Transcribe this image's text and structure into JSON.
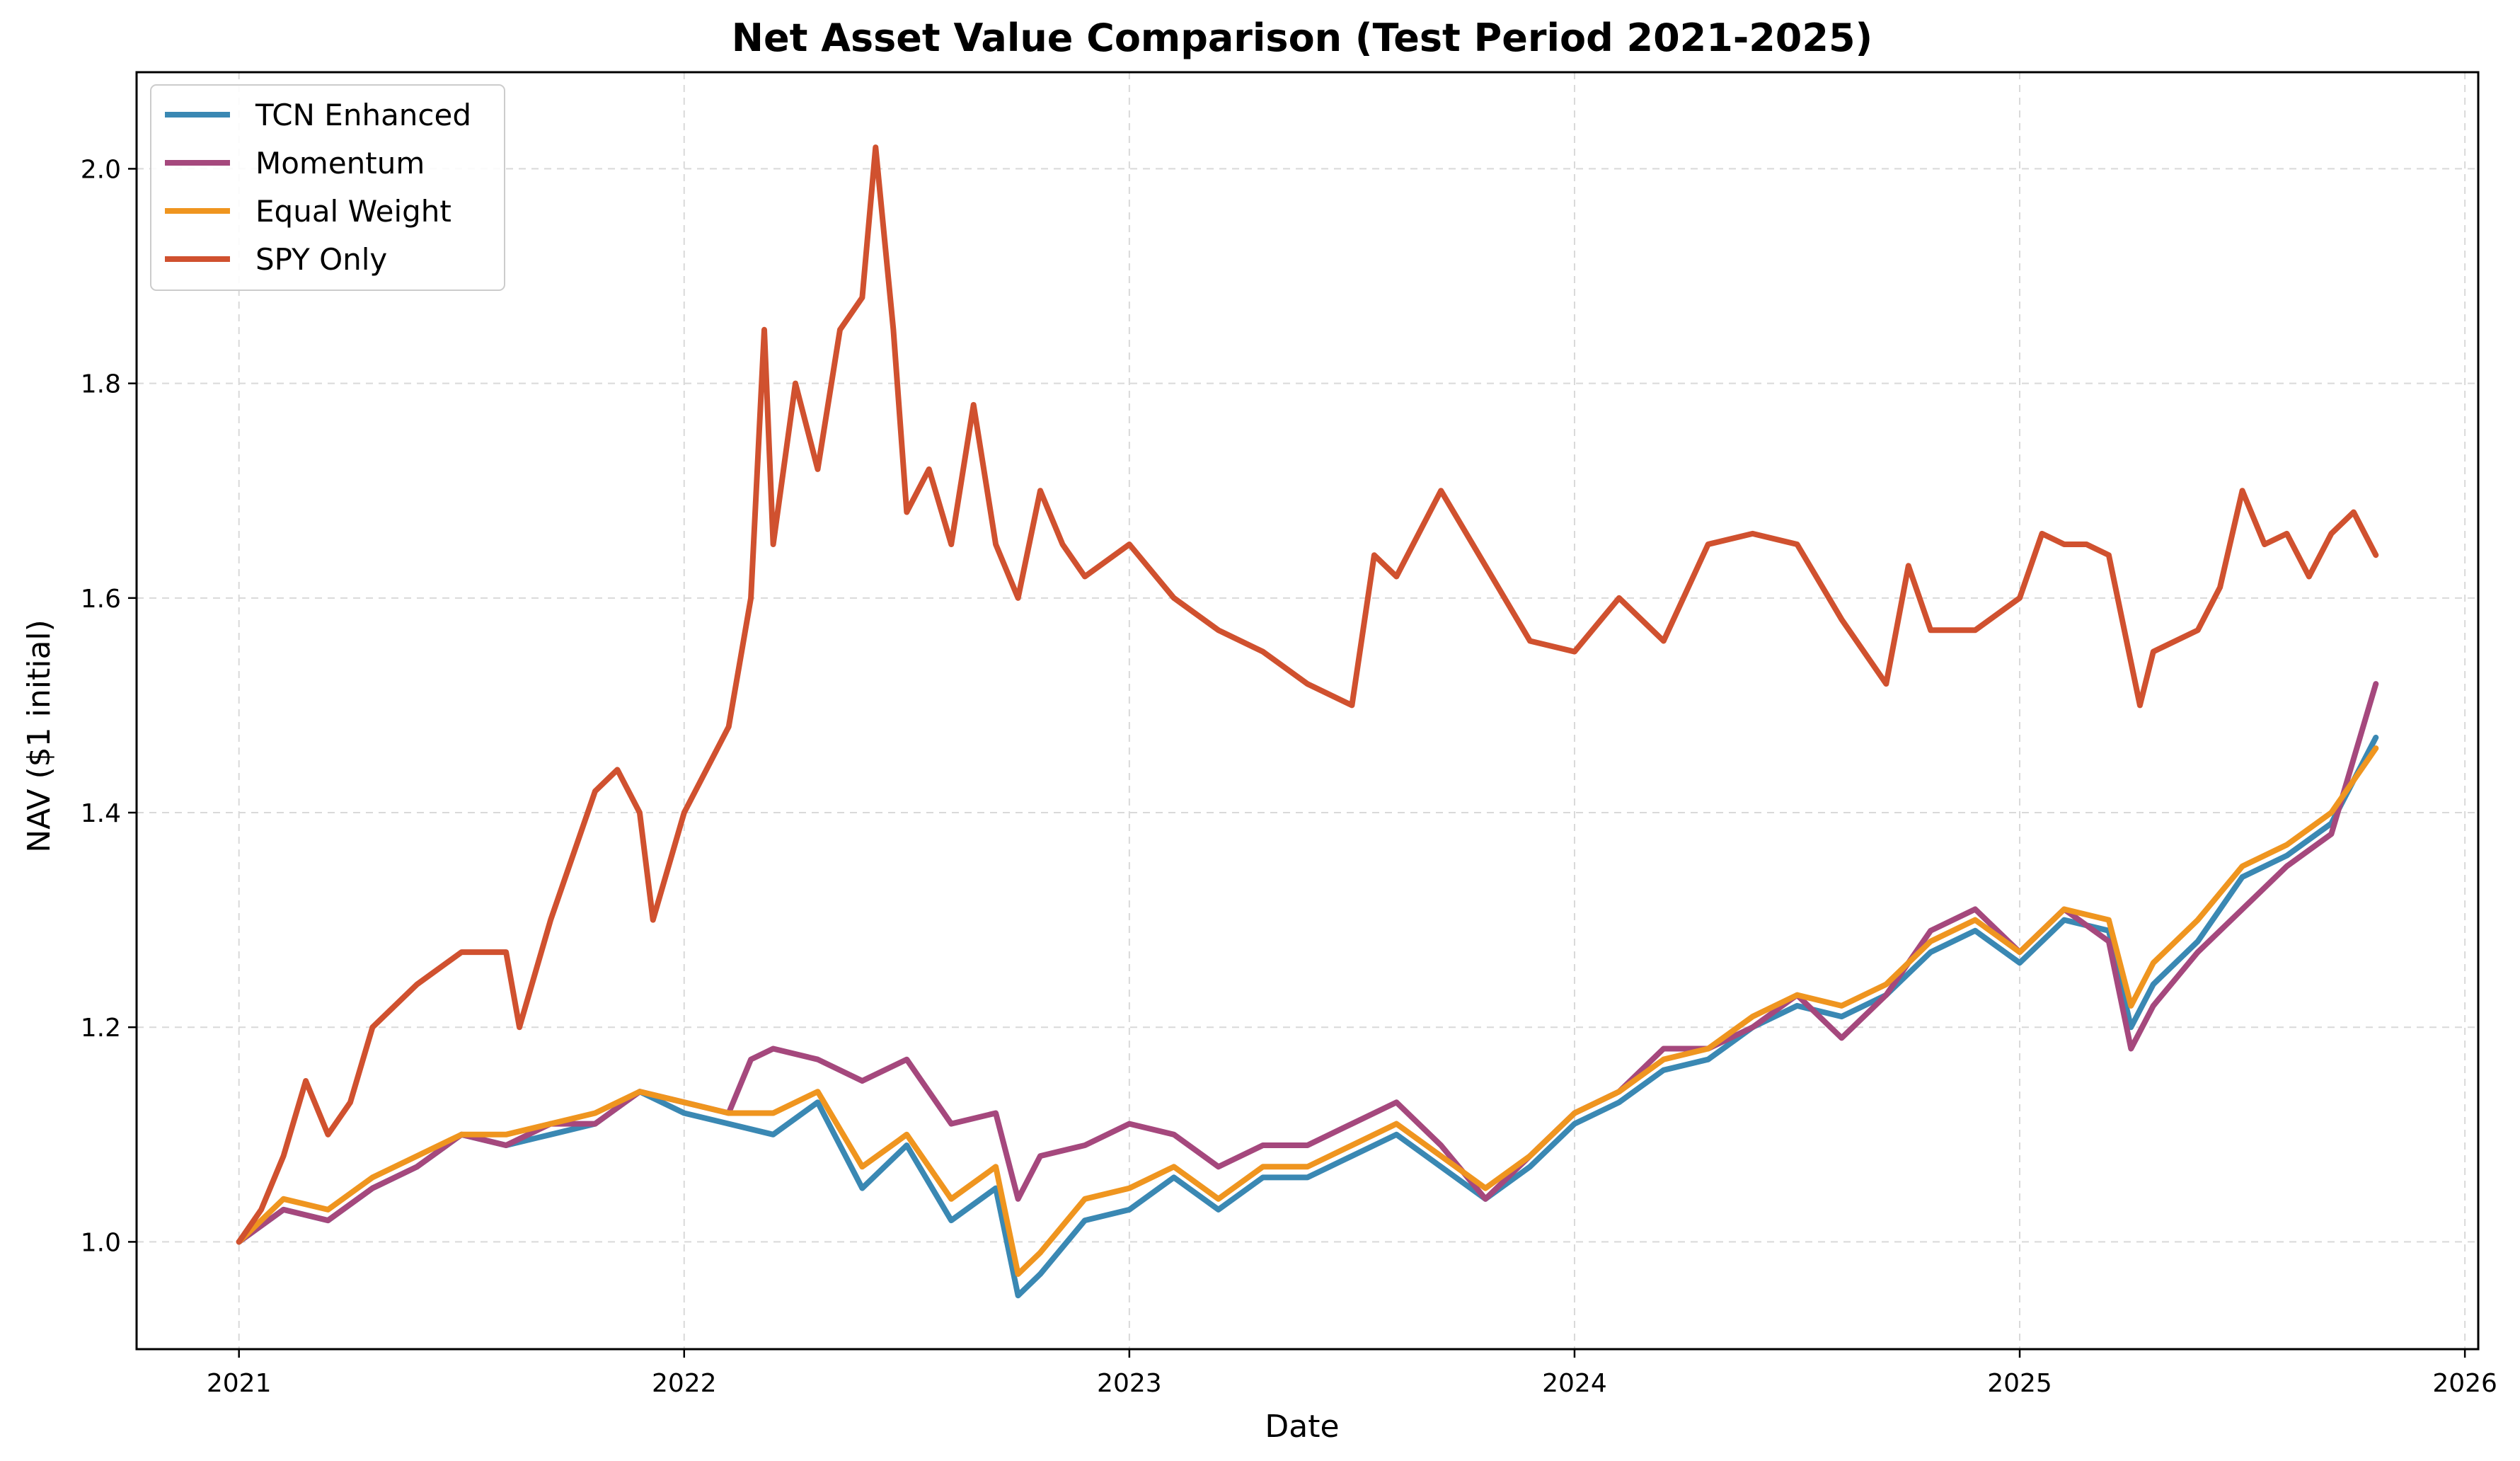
{
  "chart_data": {
    "type": "line",
    "title": "Net Asset Value Comparison (Test Period 2021-2025)",
    "xlabel": "Date",
    "ylabel": "NAV ($1 initial)",
    "xlim": [
      2020.77,
      2026.03
    ],
    "ylim": [
      0.9,
      2.09
    ],
    "x_ticks": [
      "2021",
      "2022",
      "2023",
      "2024",
      "2025",
      "2026"
    ],
    "x_tick_values": [
      2021,
      2022,
      2023,
      2024,
      2025,
      2026
    ],
    "y_ticks": [
      "1.0",
      "1.2",
      "1.4",
      "1.6",
      "1.8",
      "2.0"
    ],
    "y_tick_values": [
      1.0,
      1.2,
      1.4,
      1.6,
      1.8,
      2.0
    ],
    "grid": true,
    "legend_position": "top-left",
    "series": [
      {
        "name": "TCN Enhanced",
        "color": "#3a88b3",
        "points": [
          [
            2021.0,
            1.0
          ],
          [
            2021.1,
            1.03
          ],
          [
            2021.2,
            1.02
          ],
          [
            2021.3,
            1.05
          ],
          [
            2021.4,
            1.07
          ],
          [
            2021.5,
            1.1
          ],
          [
            2021.6,
            1.09
          ],
          [
            2021.7,
            1.1
          ],
          [
            2021.8,
            1.11
          ],
          [
            2021.9,
            1.14
          ],
          [
            2022.0,
            1.12
          ],
          [
            2022.1,
            1.11
          ],
          [
            2022.2,
            1.1
          ],
          [
            2022.3,
            1.13
          ],
          [
            2022.4,
            1.05
          ],
          [
            2022.5,
            1.09
          ],
          [
            2022.6,
            1.02
          ],
          [
            2022.7,
            1.05
          ],
          [
            2022.75,
            0.95
          ],
          [
            2022.8,
            0.97
          ],
          [
            2022.9,
            1.02
          ],
          [
            2023.0,
            1.03
          ],
          [
            2023.1,
            1.06
          ],
          [
            2023.2,
            1.03
          ],
          [
            2023.3,
            1.06
          ],
          [
            2023.4,
            1.06
          ],
          [
            2023.5,
            1.08
          ],
          [
            2023.6,
            1.1
          ],
          [
            2023.7,
            1.07
          ],
          [
            2023.8,
            1.04
          ],
          [
            2023.9,
            1.07
          ],
          [
            2024.0,
            1.11
          ],
          [
            2024.1,
            1.13
          ],
          [
            2024.2,
            1.16
          ],
          [
            2024.3,
            1.17
          ],
          [
            2024.4,
            1.2
          ],
          [
            2024.5,
            1.22
          ],
          [
            2024.6,
            1.21
          ],
          [
            2024.7,
            1.23
          ],
          [
            2024.8,
            1.27
          ],
          [
            2024.9,
            1.29
          ],
          [
            2025.0,
            1.26
          ],
          [
            2025.1,
            1.3
          ],
          [
            2025.2,
            1.29
          ],
          [
            2025.25,
            1.2
          ],
          [
            2025.3,
            1.24
          ],
          [
            2025.4,
            1.28
          ],
          [
            2025.5,
            1.34
          ],
          [
            2025.6,
            1.36
          ],
          [
            2025.7,
            1.39
          ],
          [
            2025.8,
            1.47
          ]
        ]
      },
      {
        "name": "Momentum",
        "color": "#a5487d",
        "points": [
          [
            2021.0,
            1.0
          ],
          [
            2021.1,
            1.03
          ],
          [
            2021.2,
            1.02
          ],
          [
            2021.3,
            1.05
          ],
          [
            2021.4,
            1.07
          ],
          [
            2021.5,
            1.1
          ],
          [
            2021.6,
            1.09
          ],
          [
            2021.7,
            1.11
          ],
          [
            2021.8,
            1.11
          ],
          [
            2021.9,
            1.14
          ],
          [
            2022.0,
            1.13
          ],
          [
            2022.1,
            1.12
          ],
          [
            2022.15,
            1.17
          ],
          [
            2022.2,
            1.18
          ],
          [
            2022.3,
            1.17
          ],
          [
            2022.4,
            1.15
          ],
          [
            2022.5,
            1.17
          ],
          [
            2022.6,
            1.11
          ],
          [
            2022.7,
            1.12
          ],
          [
            2022.75,
            1.04
          ],
          [
            2022.8,
            1.08
          ],
          [
            2022.9,
            1.09
          ],
          [
            2023.0,
            1.11
          ],
          [
            2023.1,
            1.1
          ],
          [
            2023.2,
            1.07
          ],
          [
            2023.3,
            1.09
          ],
          [
            2023.4,
            1.09
          ],
          [
            2023.5,
            1.11
          ],
          [
            2023.6,
            1.13
          ],
          [
            2023.7,
            1.09
          ],
          [
            2023.8,
            1.04
          ],
          [
            2023.9,
            1.08
          ],
          [
            2024.0,
            1.12
          ],
          [
            2024.1,
            1.14
          ],
          [
            2024.2,
            1.18
          ],
          [
            2024.3,
            1.18
          ],
          [
            2024.4,
            1.2
          ],
          [
            2024.5,
            1.23
          ],
          [
            2024.6,
            1.19
          ],
          [
            2024.7,
            1.23
          ],
          [
            2024.8,
            1.29
          ],
          [
            2024.9,
            1.31
          ],
          [
            2025.0,
            1.27
          ],
          [
            2025.1,
            1.31
          ],
          [
            2025.2,
            1.28
          ],
          [
            2025.25,
            1.18
          ],
          [
            2025.3,
            1.22
          ],
          [
            2025.4,
            1.27
          ],
          [
            2025.5,
            1.31
          ],
          [
            2025.6,
            1.35
          ],
          [
            2025.7,
            1.38
          ],
          [
            2025.8,
            1.52
          ]
        ]
      },
      {
        "name": "Equal Weight",
        "color": "#ef951f",
        "points": [
          [
            2021.0,
            1.0
          ],
          [
            2021.1,
            1.04
          ],
          [
            2021.2,
            1.03
          ],
          [
            2021.3,
            1.06
          ],
          [
            2021.4,
            1.08
          ],
          [
            2021.5,
            1.1
          ],
          [
            2021.6,
            1.1
          ],
          [
            2021.7,
            1.11
          ],
          [
            2021.8,
            1.12
          ],
          [
            2021.9,
            1.14
          ],
          [
            2022.0,
            1.13
          ],
          [
            2022.1,
            1.12
          ],
          [
            2022.2,
            1.12
          ],
          [
            2022.3,
            1.14
          ],
          [
            2022.4,
            1.07
          ],
          [
            2022.5,
            1.1
          ],
          [
            2022.6,
            1.04
          ],
          [
            2022.7,
            1.07
          ],
          [
            2022.75,
            0.97
          ],
          [
            2022.8,
            0.99
          ],
          [
            2022.9,
            1.04
          ],
          [
            2023.0,
            1.05
          ],
          [
            2023.1,
            1.07
          ],
          [
            2023.2,
            1.04
          ],
          [
            2023.3,
            1.07
          ],
          [
            2023.4,
            1.07
          ],
          [
            2023.5,
            1.09
          ],
          [
            2023.6,
            1.11
          ],
          [
            2023.7,
            1.08
          ],
          [
            2023.8,
            1.05
          ],
          [
            2023.9,
            1.08
          ],
          [
            2024.0,
            1.12
          ],
          [
            2024.1,
            1.14
          ],
          [
            2024.2,
            1.17
          ],
          [
            2024.3,
            1.18
          ],
          [
            2024.4,
            1.21
          ],
          [
            2024.5,
            1.23
          ],
          [
            2024.6,
            1.22
          ],
          [
            2024.7,
            1.24
          ],
          [
            2024.8,
            1.28
          ],
          [
            2024.9,
            1.3
          ],
          [
            2025.0,
            1.27
          ],
          [
            2025.1,
            1.31
          ],
          [
            2025.2,
            1.3
          ],
          [
            2025.25,
            1.22
          ],
          [
            2025.3,
            1.26
          ],
          [
            2025.4,
            1.3
          ],
          [
            2025.5,
            1.35
          ],
          [
            2025.6,
            1.37
          ],
          [
            2025.7,
            1.4
          ],
          [
            2025.8,
            1.46
          ]
        ]
      },
      {
        "name": "SPY Only",
        "color": "#d0512f",
        "points": [
          [
            2021.0,
            1.0
          ],
          [
            2021.05,
            1.03
          ],
          [
            2021.1,
            1.08
          ],
          [
            2021.15,
            1.15
          ],
          [
            2021.2,
            1.1
          ],
          [
            2021.25,
            1.13
          ],
          [
            2021.3,
            1.2
          ],
          [
            2021.4,
            1.24
          ],
          [
            2021.5,
            1.27
          ],
          [
            2021.6,
            1.27
          ],
          [
            2021.63,
            1.2
          ],
          [
            2021.7,
            1.3
          ],
          [
            2021.8,
            1.42
          ],
          [
            2021.85,
            1.44
          ],
          [
            2021.9,
            1.4
          ],
          [
            2021.93,
            1.3
          ],
          [
            2022.0,
            1.4
          ],
          [
            2022.1,
            1.48
          ],
          [
            2022.15,
            1.6
          ],
          [
            2022.18,
            1.85
          ],
          [
            2022.2,
            1.65
          ],
          [
            2022.25,
            1.8
          ],
          [
            2022.3,
            1.72
          ],
          [
            2022.35,
            1.85
          ],
          [
            2022.4,
            1.88
          ],
          [
            2022.43,
            2.02
          ],
          [
            2022.47,
            1.85
          ],
          [
            2022.5,
            1.68
          ],
          [
            2022.55,
            1.72
          ],
          [
            2022.6,
            1.65
          ],
          [
            2022.65,
            1.78
          ],
          [
            2022.7,
            1.65
          ],
          [
            2022.75,
            1.6
          ],
          [
            2022.8,
            1.7
          ],
          [
            2022.85,
            1.65
          ],
          [
            2022.9,
            1.62
          ],
          [
            2023.0,
            1.65
          ],
          [
            2023.1,
            1.6
          ],
          [
            2023.2,
            1.57
          ],
          [
            2023.3,
            1.55
          ],
          [
            2023.4,
            1.52
          ],
          [
            2023.5,
            1.5
          ],
          [
            2023.55,
            1.64
          ],
          [
            2023.6,
            1.62
          ],
          [
            2023.7,
            1.7
          ],
          [
            2023.8,
            1.63
          ],
          [
            2023.9,
            1.56
          ],
          [
            2024.0,
            1.55
          ],
          [
            2024.1,
            1.6
          ],
          [
            2024.2,
            1.56
          ],
          [
            2024.3,
            1.65
          ],
          [
            2024.4,
            1.66
          ],
          [
            2024.5,
            1.65
          ],
          [
            2024.6,
            1.58
          ],
          [
            2024.7,
            1.52
          ],
          [
            2024.75,
            1.63
          ],
          [
            2024.8,
            1.57
          ],
          [
            2024.9,
            1.57
          ],
          [
            2025.0,
            1.6
          ],
          [
            2025.05,
            1.66
          ],
          [
            2025.1,
            1.65
          ],
          [
            2025.15,
            1.65
          ],
          [
            2025.2,
            1.64
          ],
          [
            2025.27,
            1.5
          ],
          [
            2025.3,
            1.55
          ],
          [
            2025.4,
            1.57
          ],
          [
            2025.45,
            1.61
          ],
          [
            2025.5,
            1.7
          ],
          [
            2025.55,
            1.65
          ],
          [
            2025.6,
            1.66
          ],
          [
            2025.65,
            1.62
          ],
          [
            2025.7,
            1.66
          ],
          [
            2025.75,
            1.68
          ],
          [
            2025.8,
            1.64
          ]
        ]
      }
    ]
  }
}
